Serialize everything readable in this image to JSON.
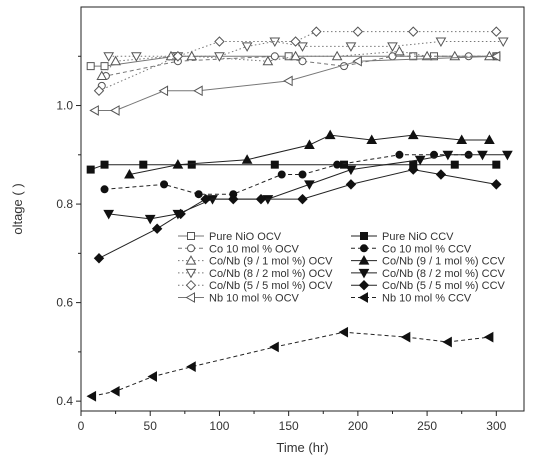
{
  "chart_data": {
    "type": "line",
    "xlabel": "Time (hr)",
    "ylabel": "oltage ( )",
    "xlim": [
      0,
      320
    ],
    "ylim": [
      0.38,
      1.2
    ],
    "x_ticks": [
      0,
      50,
      100,
      150,
      200,
      250,
      300
    ],
    "y_ticks": [
      0.4,
      0.6,
      0.8,
      1.0
    ],
    "legend_position": "center",
    "series": [
      {
        "name": "Pure NiO  OCV",
        "marker": "square",
        "filled": false,
        "dash": "solid",
        "x": [
          7,
          17,
          68,
          150,
          240,
          255,
          300
        ],
        "y": [
          1.08,
          1.08,
          1.1,
          1.1,
          1.1,
          1.1,
          1.1
        ]
      },
      {
        "name": "Co 10 mol % OCV",
        "marker": "circle",
        "filled": false,
        "dash": "dashed",
        "x": [
          15,
          18,
          70,
          140,
          160,
          190,
          225,
          280,
          300
        ],
        "y": [
          1.04,
          1.06,
          1.09,
          1.1,
          1.09,
          1.08,
          1.1,
          1.1,
          1.1
        ]
      },
      {
        "name": "Co/Nb (9 / 1 mol %) OCV",
        "marker": "triangle-up",
        "filled": false,
        "dash": "dotted",
        "x": [
          15,
          25,
          65,
          80,
          135,
          155,
          185,
          230,
          250,
          270,
          295
        ],
        "y": [
          1.06,
          1.09,
          1.1,
          1.1,
          1.09,
          1.1,
          1.1,
          1.11,
          1.1,
          1.1,
          1.1
        ]
      },
      {
        "name": "Co/Nb (8 / 2 mol %) OCV",
        "marker": "triangle-down",
        "filled": false,
        "dash": "dotted",
        "x": [
          20,
          40,
          70,
          100,
          120,
          140,
          160,
          195,
          225,
          260,
          305
        ],
        "y": [
          1.1,
          1.1,
          1.1,
          1.1,
          1.12,
          1.13,
          1.12,
          1.12,
          1.12,
          1.13,
          1.13
        ]
      },
      {
        "name": "Co/Nb (5 / 5 mol %) OCV",
        "marker": "diamond",
        "filled": false,
        "dash": "dotted",
        "x": [
          13,
          70,
          100,
          155,
          170,
          200,
          240,
          300
        ],
        "y": [
          1.03,
          1.1,
          1.13,
          1.13,
          1.15,
          1.15,
          1.15,
          1.15
        ]
      },
      {
        "name": "Nb 10 mol %  OCV",
        "marker": "triangle-left",
        "filled": false,
        "dash": "solid",
        "x": [
          10,
          25,
          60,
          85,
          150,
          200,
          300
        ],
        "y": [
          0.99,
          0.99,
          1.03,
          1.03,
          1.05,
          1.09,
          1.1
        ]
      },
      {
        "name": "Pure NiO  CCV",
        "marker": "square",
        "filled": true,
        "dash": "solid",
        "x": [
          7,
          17,
          45,
          80,
          140,
          190,
          240,
          270,
          300
        ],
        "y": [
          0.87,
          0.88,
          0.88,
          0.88,
          0.88,
          0.88,
          0.88,
          0.88,
          0.88
        ]
      },
      {
        "name": "Co 10 mol % CCV",
        "marker": "circle",
        "filled": true,
        "dash": "dashed",
        "x": [
          17,
          60,
          85,
          110,
          145,
          160,
          185,
          230,
          255,
          280
        ],
        "y": [
          0.83,
          0.84,
          0.82,
          0.82,
          0.86,
          0.86,
          0.88,
          0.9,
          0.9,
          0.9
        ]
      },
      {
        "name": "Co/Nb (9 / 1 mol %) CCV",
        "marker": "triangle-up",
        "filled": true,
        "dash": "solid",
        "x": [
          35,
          70,
          120,
          165,
          180,
          210,
          240,
          275,
          295
        ],
        "y": [
          0.86,
          0.88,
          0.89,
          0.92,
          0.94,
          0.93,
          0.94,
          0.93,
          0.93
        ]
      },
      {
        "name": "Co/Nb (8 / 2 mol %) CCV",
        "marker": "triangle-down",
        "filled": true,
        "dash": "solid",
        "x": [
          20,
          50,
          70,
          95,
          135,
          165,
          195,
          245,
          265,
          290,
          308
        ],
        "y": [
          0.78,
          0.77,
          0.78,
          0.81,
          0.81,
          0.84,
          0.87,
          0.89,
          0.9,
          0.9,
          0.9
        ]
      },
      {
        "name": "Co/Nb (5 / 5 mol %) CCV",
        "marker": "diamond",
        "filled": true,
        "dash": "solid",
        "x": [
          13,
          55,
          72,
          90,
          110,
          130,
          160,
          195,
          240,
          260,
          300
        ],
        "y": [
          0.69,
          0.75,
          0.78,
          0.81,
          0.81,
          0.81,
          0.81,
          0.84,
          0.87,
          0.86,
          0.84
        ]
      },
      {
        "name": "Nb 10 mol % CCV",
        "marker": "triangle-left",
        "filled": true,
        "dash": "dashed",
        "x": [
          8,
          25,
          52,
          80,
          140,
          190,
          235,
          265,
          295
        ],
        "y": [
          0.41,
          0.42,
          0.45,
          0.47,
          0.51,
          0.54,
          0.53,
          0.52,
          0.53
        ]
      }
    ]
  }
}
